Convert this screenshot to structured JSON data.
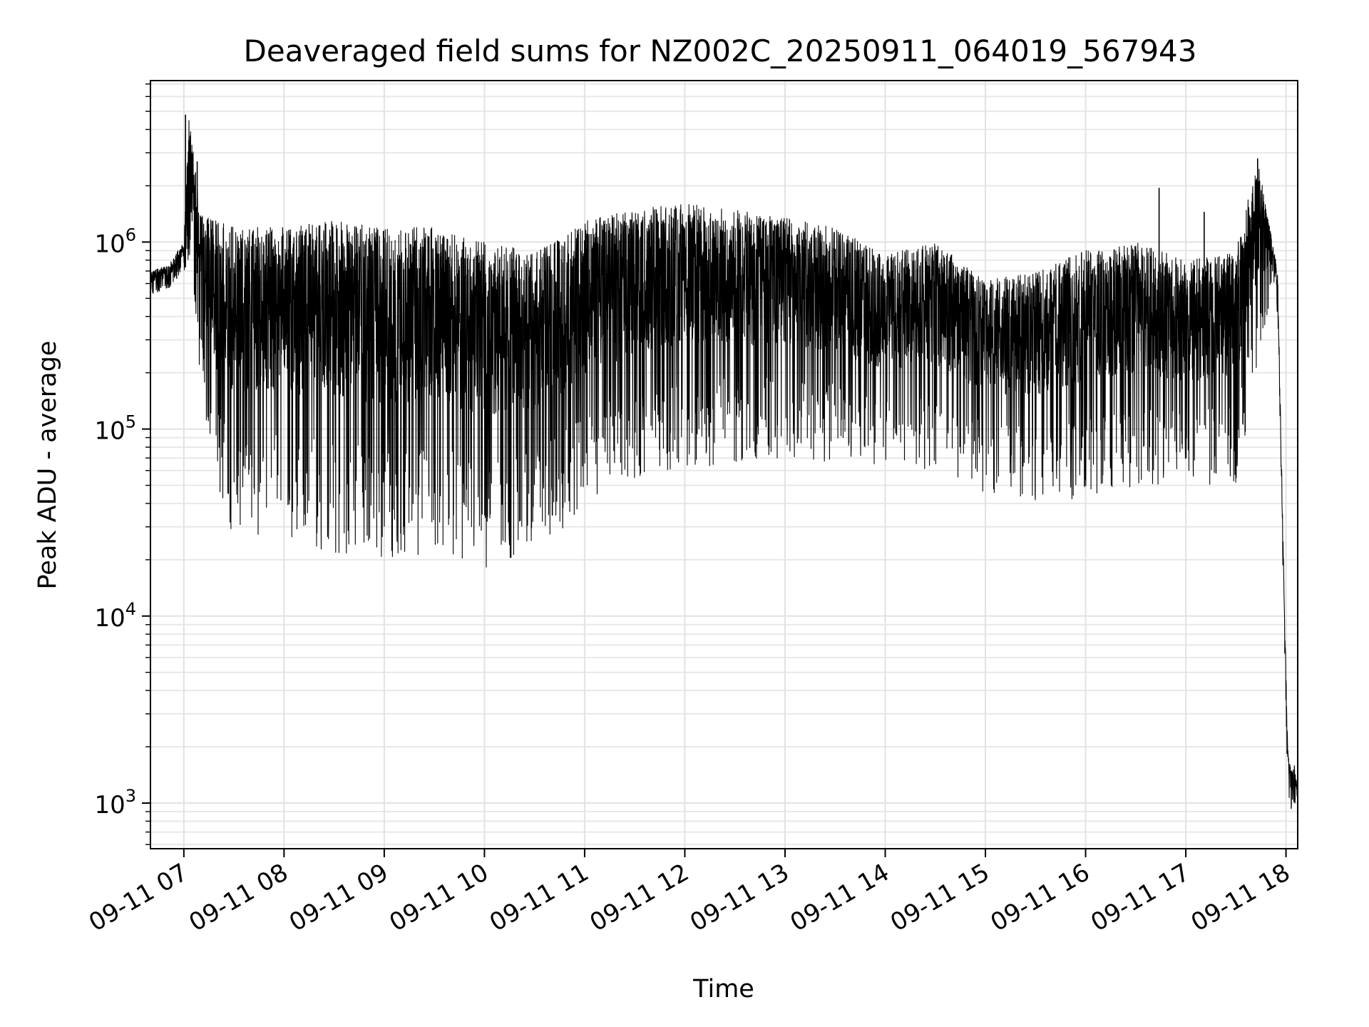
{
  "chart_data": {
    "type": "line",
    "title": "Deaveraged field sums for NZ002C_20250911_064019_567943",
    "xlabel": "Time",
    "ylabel": "Peak ADU - average",
    "yscale": "log",
    "grid": "on",
    "legend": "none",
    "line_color": "#000000",
    "xlim": [
      "2025-09-11 06:40",
      "2025-09-11 18:07"
    ],
    "ylim": [
      570,
      7300000
    ],
    "x_ticks": [
      {
        "time": "2025-09-11 07:00",
        "label": "09-11 07"
      },
      {
        "time": "2025-09-11 08:00",
        "label": "09-11 08"
      },
      {
        "time": "2025-09-11 09:00",
        "label": "09-11 09"
      },
      {
        "time": "2025-09-11 10:00",
        "label": "09-11 10"
      },
      {
        "time": "2025-09-11 11:00",
        "label": "09-11 11"
      },
      {
        "time": "2025-09-11 12:00",
        "label": "09-11 12"
      },
      {
        "time": "2025-09-11 13:00",
        "label": "09-11 13"
      },
      {
        "time": "2025-09-11 14:00",
        "label": "09-11 14"
      },
      {
        "time": "2025-09-11 15:00",
        "label": "09-11 15"
      },
      {
        "time": "2025-09-11 16:00",
        "label": "09-11 16"
      },
      {
        "time": "2025-09-11 17:00",
        "label": "09-11 17"
      },
      {
        "time": "2025-09-11 18:00",
        "label": "09-11 18"
      }
    ],
    "y_ticks": [
      {
        "value": 1000,
        "base": "10",
        "exp": "3"
      },
      {
        "value": 10000,
        "base": "10",
        "exp": "4"
      },
      {
        "value": 100000,
        "base": "10",
        "exp": "5"
      },
      {
        "value": 1000000,
        "base": "10",
        "exp": "6"
      }
    ],
    "series": [
      {
        "x": [
          "2025-09-11 06:40",
          "2025-09-11 06:50",
          "2025-09-11 07:00",
          "2025-09-11 07:03",
          "2025-09-11 07:10",
          "2025-09-11 07:20",
          "2025-09-11 07:30",
          "2025-09-11 07:40",
          "2025-09-11 08:00",
          "2025-09-11 08:30",
          "2025-09-11 09:00",
          "2025-09-11 09:30",
          "2025-09-11 10:00",
          "2025-09-11 10:30",
          "2025-09-11 11:00",
          "2025-09-11 11:30",
          "2025-09-11 12:00",
          "2025-09-11 12:30",
          "2025-09-11 13:00",
          "2025-09-11 13:30",
          "2025-09-11 14:00",
          "2025-09-11 14:30",
          "2025-09-11 15:00",
          "2025-09-11 15:30",
          "2025-09-11 16:00",
          "2025-09-11 16:30",
          "2025-09-11 17:00",
          "2025-09-11 17:30",
          "2025-09-11 17:43",
          "2025-09-11 17:52",
          "2025-09-11 17:55",
          "2025-09-11 17:59",
          "2025-09-11 18:01",
          "2025-09-11 18:03",
          "2025-09-11 18:05",
          "2025-09-11 18:07"
        ],
        "upper": [
          700000,
          750000,
          1000000,
          4800000,
          1400000,
          1300000,
          1200000,
          1200000,
          1200000,
          1300000,
          1200000,
          1200000,
          1000000,
          900000,
          1300000,
          1500000,
          1600000,
          1500000,
          1350000,
          1200000,
          850000,
          1000000,
          620000,
          700000,
          900000,
          1000000,
          800000,
          900000,
          2800000,
          1000000,
          700000,
          12000,
          2000,
          1500,
          1600,
          1200
        ],
        "lower": [
          520000,
          550000,
          700000,
          700000,
          150000,
          40000,
          25000,
          28000,
          25000,
          21000,
          20000,
          21000,
          18000,
          22000,
          35000,
          55000,
          60000,
          65000,
          70000,
          65000,
          60000,
          60000,
          45000,
          40000,
          42000,
          50000,
          48000,
          50000,
          180000,
          600000,
          400000,
          8000,
          1100,
          900,
          950,
          900
        ],
        "peaks": [
          {
            "time": "2025-09-11 07:01",
            "value": 4800000
          },
          {
            "time": "2025-09-11 07:08",
            "value": 2700000
          },
          {
            "time": "2025-09-11 16:44",
            "value": 1950000
          },
          {
            "time": "2025-09-11 17:11",
            "value": 1450000
          },
          {
            "time": "2025-09-11 17:43",
            "value": 2800000
          }
        ]
      }
    ]
  }
}
